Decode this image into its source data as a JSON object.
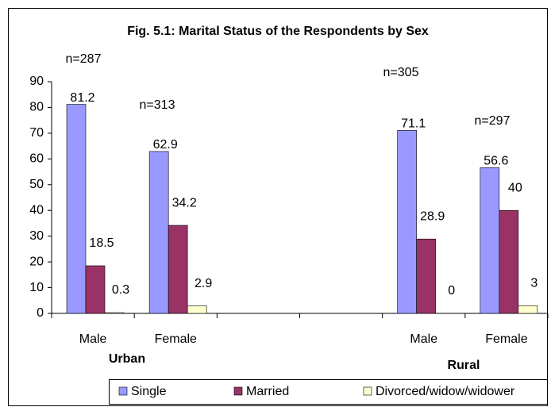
{
  "chart_data": {
    "type": "bar",
    "title": "Fig. 5.1: Marital Status of the Respondents by Sex",
    "categories": [
      "Male",
      "Female",
      null,
      null,
      "Male",
      "Female"
    ],
    "group_labels": [
      "Urban",
      "Rural"
    ],
    "annotations": [
      "n=287",
      "n=313",
      "n=305",
      "n=297"
    ],
    "series": [
      {
        "name": "Single",
        "color": "#9999ff",
        "values": [
          81.2,
          62.9,
          null,
          null,
          71.1,
          56.6
        ]
      },
      {
        "name": "Married",
        "color": "#993366",
        "values": [
          18.5,
          34.2,
          null,
          null,
          28.9,
          40
        ]
      },
      {
        "name": "Divorced/widow/widower",
        "color": "#ffffcc",
        "values": [
          0.3,
          2.9,
          null,
          null,
          0,
          3
        ]
      }
    ],
    "ylim": [
      0,
      90
    ],
    "yticks": [
      0,
      10,
      20,
      30,
      40,
      50,
      60,
      70,
      80,
      90
    ],
    "grid": false,
    "legend": "bottom"
  }
}
